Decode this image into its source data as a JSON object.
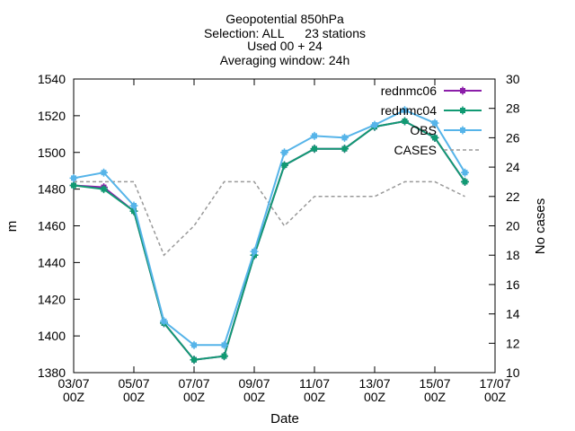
{
  "chart_data": {
    "type": "line",
    "title_lines": [
      "Geopotential 850hPa",
      "Selection: ALL      23 stations",
      "Used 00 + 24",
      "Averaging window: 24h"
    ],
    "xlabel": "Date",
    "ylabel": "m",
    "y2label": "No cases",
    "ylim": [
      1380,
      1540
    ],
    "y2lim": [
      10,
      30
    ],
    "y_ticks": [
      1380,
      1400,
      1420,
      1440,
      1460,
      1480,
      1500,
      1520,
      1540
    ],
    "y2_ticks": [
      10,
      12,
      14,
      16,
      18,
      20,
      22,
      24,
      26,
      28,
      30
    ],
    "x_ticks": [
      {
        "day": 3,
        "line1": "03/07",
        "line2": "00Z"
      },
      {
        "day": 5,
        "line1": "05/07",
        "line2": "00Z"
      },
      {
        "day": 7,
        "line1": "07/07",
        "line2": "00Z"
      },
      {
        "day": 9,
        "line1": "09/07",
        "line2": "00Z"
      },
      {
        "day": 11,
        "line1": "11/07",
        "line2": "00Z"
      },
      {
        "day": 13,
        "line1": "13/07",
        "line2": "00Z"
      },
      {
        "day": 15,
        "line1": "15/07",
        "line2": "00Z"
      },
      {
        "day": 17,
        "line1": "17/07",
        "line2": "00Z"
      }
    ],
    "xlim_days": [
      3,
      17
    ],
    "legend_position": "top-right",
    "grid": false,
    "x": [
      3,
      4,
      5,
      6,
      7,
      8,
      9,
      10,
      11,
      12,
      13,
      14,
      15,
      16
    ],
    "series": [
      {
        "name": "rednmc06",
        "color": "#8b1ea9",
        "marker": "plus-square",
        "axis": "y",
        "values": [
          1482,
          1481,
          1468,
          1407,
          1387,
          1389,
          1444,
          1493,
          1502,
          1502,
          1514,
          1517,
          1508,
          1484
        ]
      },
      {
        "name": "rednmc04",
        "color": "#119a73",
        "marker": "plus-square",
        "axis": "y",
        "values": [
          1482,
          1480,
          1468,
          1407,
          1387,
          1389,
          1444,
          1493,
          1502,
          1502,
          1514,
          1517,
          1508,
          1484
        ]
      },
      {
        "name": "OBS",
        "color": "#56b4e9",
        "marker": "plus-square",
        "axis": "y",
        "values": [
          1486,
          1489,
          1471,
          1408,
          1395,
          1395,
          1446,
          1500,
          1509,
          1508,
          1515,
          1523,
          1516,
          1489
        ]
      },
      {
        "name": "CASES",
        "color": "#999999",
        "marker": "none",
        "dashed": true,
        "axis": "y2",
        "values": [
          23,
          23,
          23,
          18,
          20,
          23,
          23,
          20,
          22,
          22,
          22,
          23,
          23,
          22
        ]
      }
    ]
  }
}
